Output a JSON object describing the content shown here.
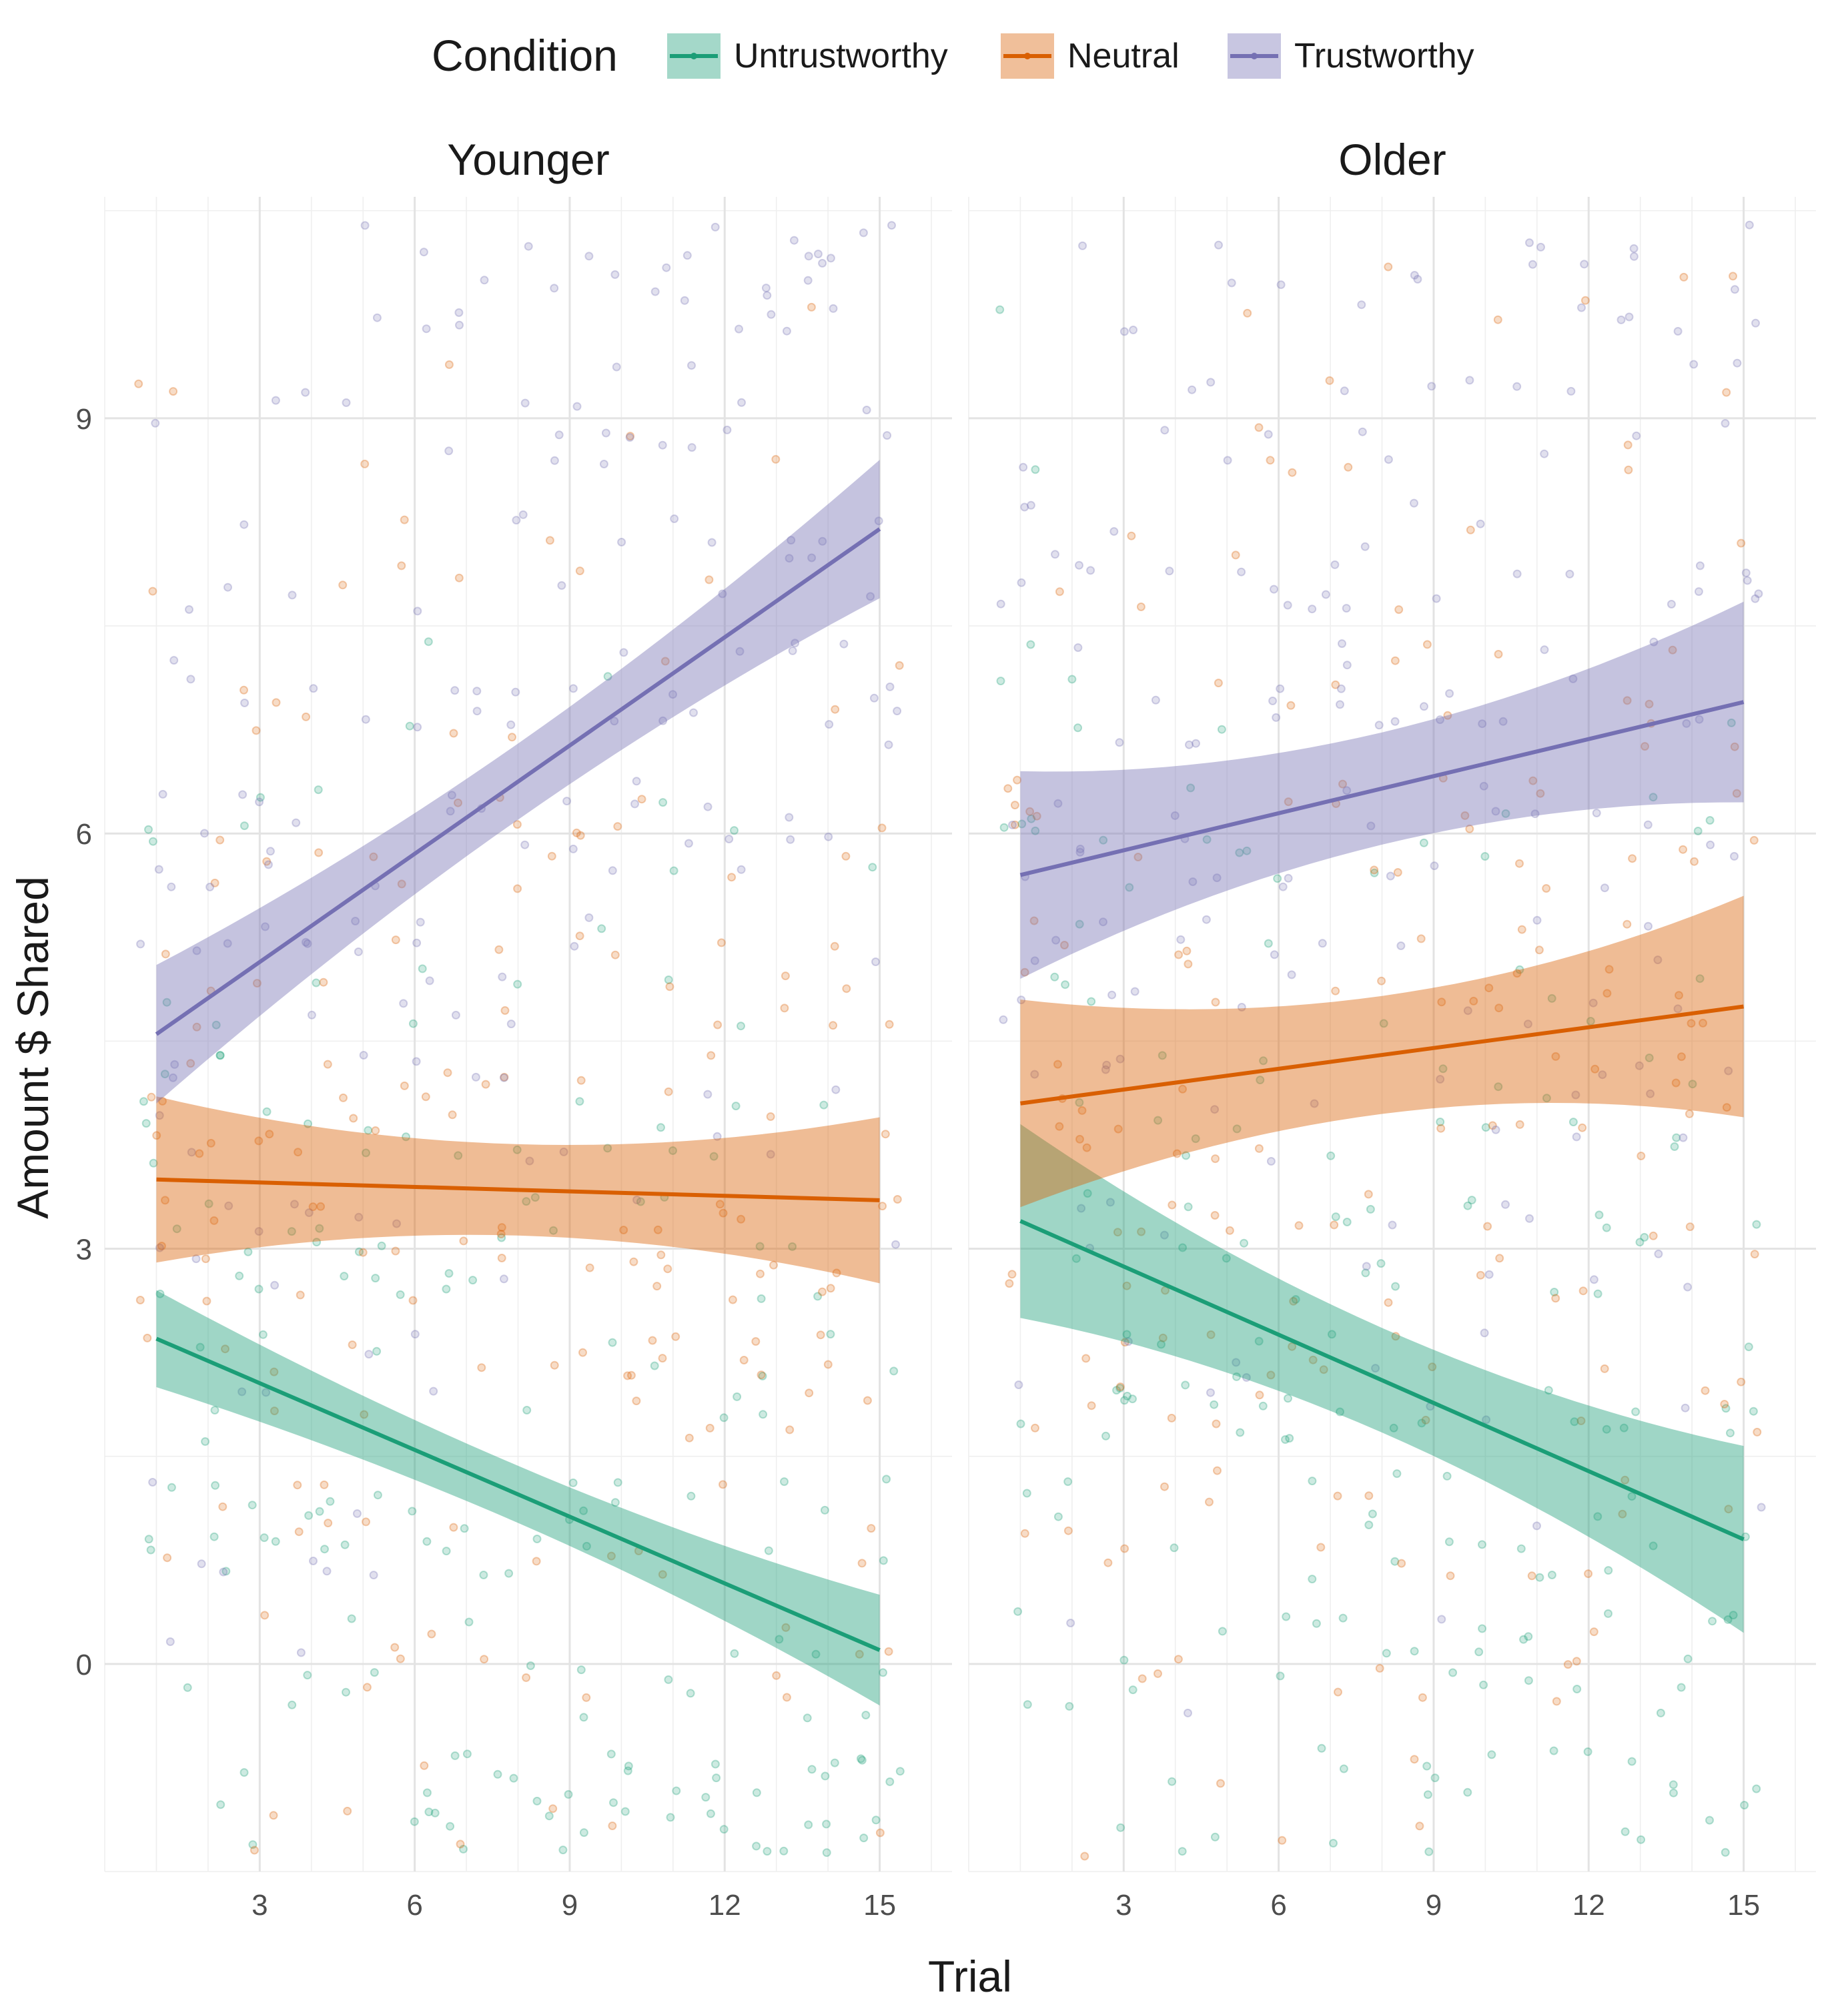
{
  "chart_data": {
    "type": "scatter",
    "legend": {
      "title": "Condition",
      "placement": "top",
      "entries": [
        {
          "name": "Untrustworthy",
          "color": "#1B9E77"
        },
        {
          "name": "Neutral",
          "color": "#D95F02"
        },
        {
          "name": "Trustworthy",
          "color": "#7570B3"
        }
      ]
    },
    "xlabel": "Trial",
    "ylabel": "Amount $ Shared",
    "xlim": [
      0,
      16.4
    ],
    "ylim": [
      -1.5,
      10.6
    ],
    "x_ticks": [
      3,
      6,
      9,
      12,
      15
    ],
    "y_ticks": [
      0,
      3,
      6,
      9
    ],
    "grid": true,
    "panels": [
      {
        "label": "Younger",
        "series": [
          {
            "name": "Untrustworthy",
            "color": "#1B9E77",
            "fit": {
              "x": [
                1,
                15
              ],
              "y": [
                2.35,
                0.1
              ]
            },
            "ci_lower": [
              2.0,
              -0.3
            ],
            "ci_upper": [
              2.7,
              0.5
            ]
          },
          {
            "name": "Neutral",
            "color": "#D95F02",
            "fit": {
              "x": [
                1,
                15
              ],
              "y": [
                3.5,
                3.35
              ]
            },
            "ci_lower": [
              2.9,
              2.75
            ],
            "ci_upper": [
              4.1,
              3.95
            ]
          },
          {
            "name": "Trustworthy",
            "color": "#7570B3",
            "fit": {
              "x": [
                1,
                15
              ],
              "y": [
                4.55,
                8.2
              ]
            },
            "ci_lower": [
              4.05,
              7.7
            ],
            "ci_upper": [
              5.05,
              8.7
            ]
          }
        ]
      },
      {
        "label": "Older",
        "series": [
          {
            "name": "Untrustworthy",
            "color": "#1B9E77",
            "fit": {
              "x": [
                1,
                15
              ],
              "y": [
                3.2,
                0.9
              ]
            },
            "ci_lower": [
              2.5,
              0.25
            ],
            "ci_upper": [
              3.9,
              1.6
            ]
          },
          {
            "name": "Neutral",
            "color": "#D95F02",
            "fit": {
              "x": [
                1,
                15
              ],
              "y": [
                4.05,
                4.75
              ]
            },
            "ci_lower": [
              3.3,
              3.95
            ],
            "ci_upper": [
              4.8,
              5.55
            ]
          },
          {
            "name": "Trustworthy",
            "color": "#7570B3",
            "fit": {
              "x": [
                1,
                15
              ],
              "y": [
                5.7,
                6.95
              ]
            },
            "ci_lower": [
              4.95,
              6.25
            ],
            "ci_upper": [
              6.45,
              7.7
            ]
          }
        ]
      }
    ],
    "points_note_values": {
      "value_levels": [
        -1,
        0,
        1,
        2,
        3,
        4,
        5,
        6,
        7,
        8,
        9,
        10
      ],
      "jitter": 0.4
    }
  }
}
